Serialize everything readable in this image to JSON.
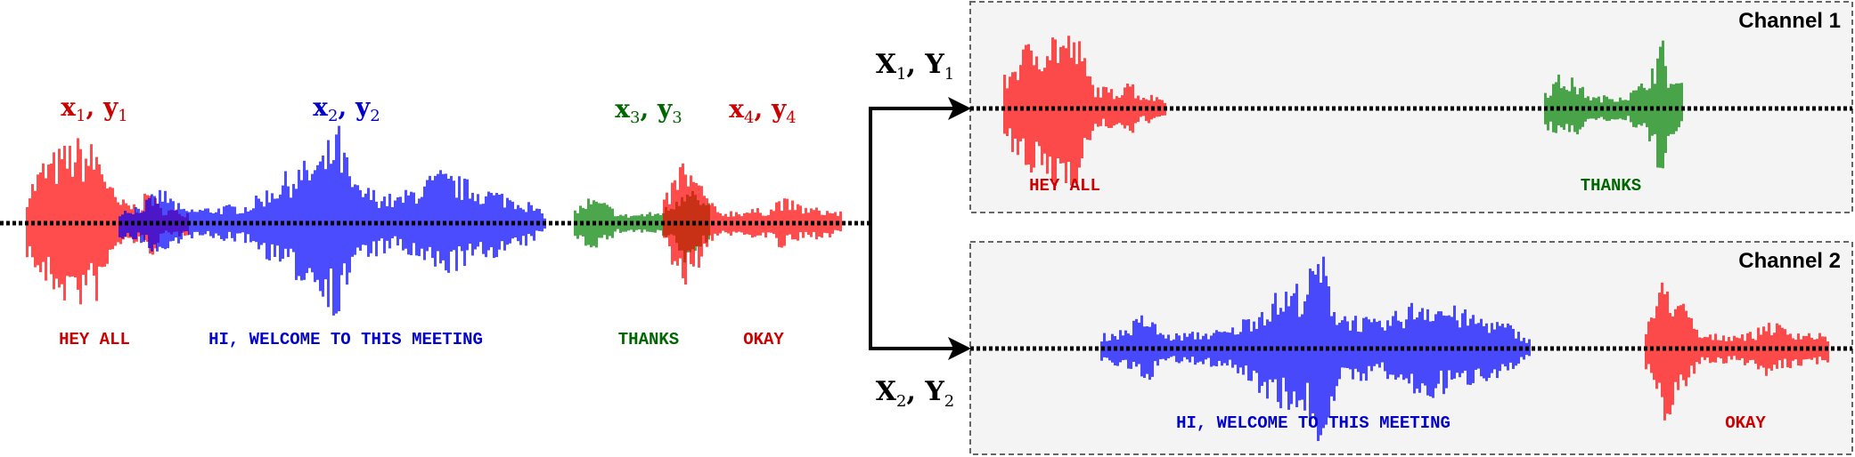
{
  "colors": {
    "speaker_red": "#ff0000",
    "speaker_blue": "#0000ff",
    "speaker_green": "#008000",
    "label_red": "#cc0000",
    "label_blue": "#0000cc",
    "label_green": "#006600",
    "channel_bg": "#f4f4f4",
    "channel_border": "#666666"
  },
  "mixture": {
    "segments": [
      {
        "var1": "x",
        "sub1": "1",
        "sep": ", ",
        "var2": "y",
        "sub2": "1",
        "transcript": "HEY ALL"
      },
      {
        "var1": "x",
        "sub1": "2",
        "sep": ", ",
        "var2": "y",
        "sub2": "2",
        "transcript": "HI, WELCOME TO THIS MEETING"
      },
      {
        "var1": "x",
        "sub1": "3",
        "sep": ", ",
        "var2": "y",
        "sub2": "3",
        "transcript": "THANKS"
      },
      {
        "var1": "x",
        "sub1": "4",
        "sep": ", ",
        "var2": "y",
        "sub2": "4",
        "transcript": "OKAY"
      }
    ]
  },
  "routing": {
    "output1": {
      "var1": "X",
      "sub1": "1",
      "sep": ", ",
      "var2": "Y",
      "sub2": "1"
    },
    "output2": {
      "var1": "X",
      "sub1": "2",
      "sep": ", ",
      "var2": "Y",
      "sub2": "2"
    }
  },
  "channels": [
    {
      "title": "Channel 1",
      "transcripts": [
        "HEY ALL",
        "THANKS"
      ]
    },
    {
      "title": "Channel 2",
      "transcripts": [
        "HI, WELCOME TO THIS MEETING",
        "OKAY"
      ]
    }
  ]
}
